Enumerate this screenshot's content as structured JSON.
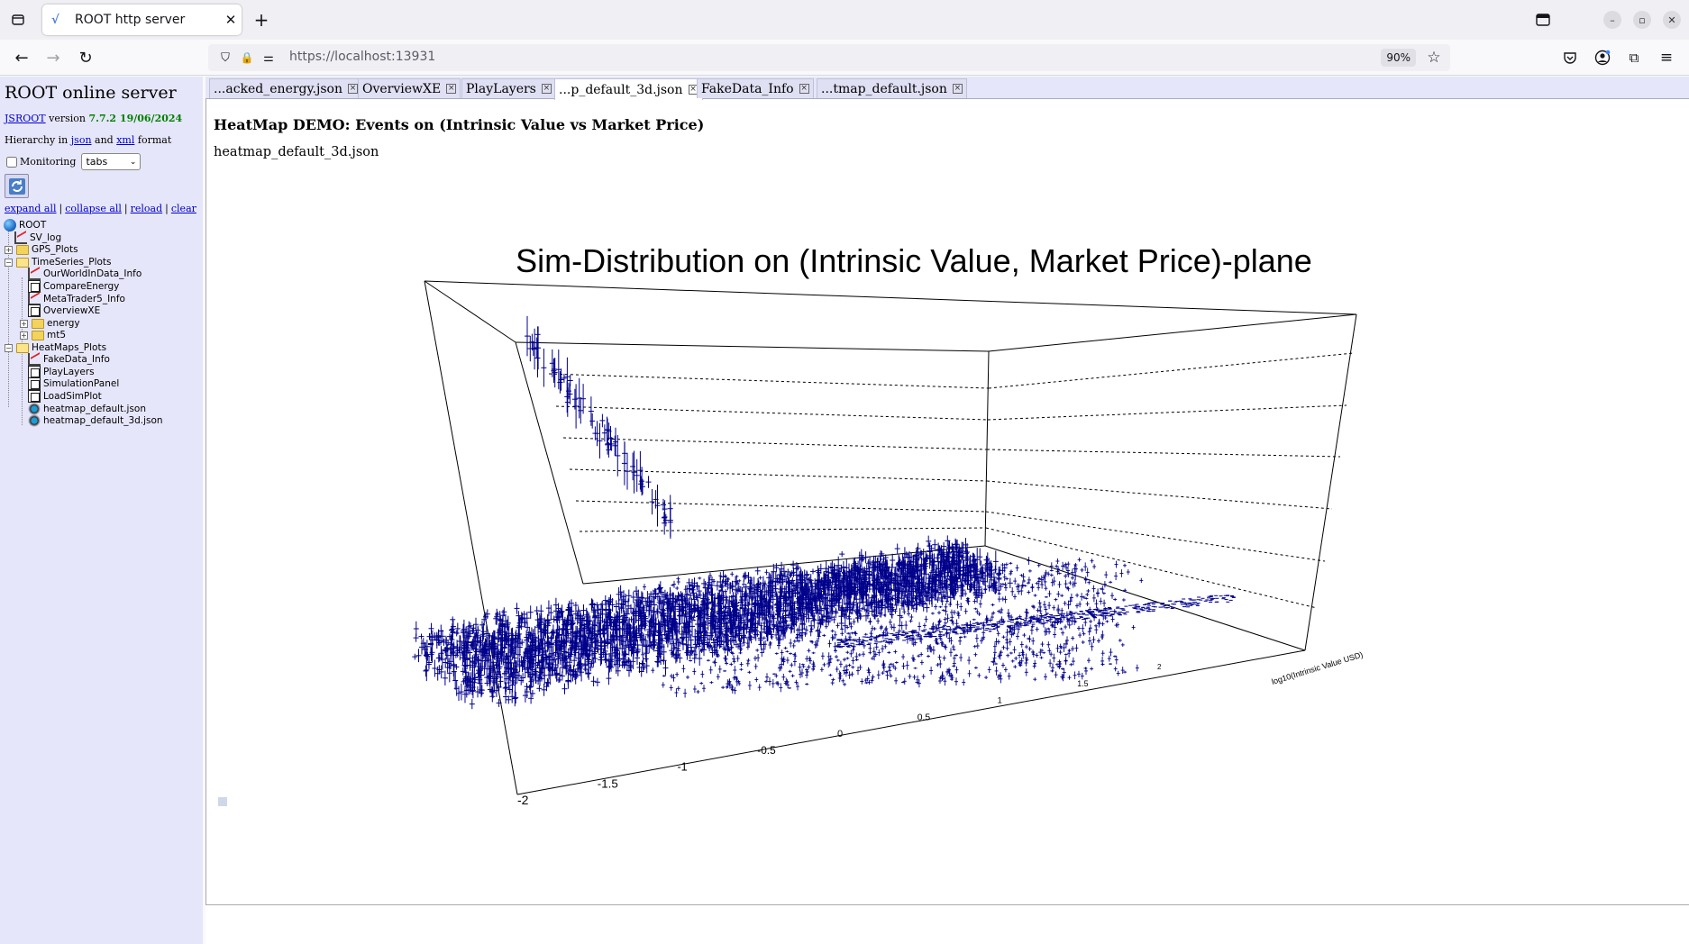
{
  "browser": {
    "tab_title": "ROOT http server",
    "tab_favicon": "√",
    "url": "https://localhost:13931",
    "zoom": "90%"
  },
  "left_panel": {
    "title": "ROOT online server",
    "jsroot_link": "JSROOT",
    "version_word": "version",
    "version_value": "7.7.2 19/06/2024",
    "hierarchy_prefix": "Hierarchy in",
    "json_link": "json",
    "and_word": "and",
    "xml_link": "xml",
    "format_word": "format",
    "monitoring_label": "Monitoring",
    "layout_value": "tabs",
    "links": {
      "expand_all": "expand all",
      "collapse_all": "collapse all",
      "reload": "reload",
      "clear": "clear"
    },
    "tree": [
      {
        "label": "ROOT",
        "icon": "globe-icon"
      },
      {
        "label": "SV_log",
        "icon": "graph-icon"
      },
      {
        "label": "GPS_Plots",
        "icon": "folder-icon"
      },
      {
        "label": "TimeSeries_Plots",
        "icon": "folder-open-icon"
      },
      {
        "label": "OurWorldInData_Info",
        "icon": "graph-icon"
      },
      {
        "label": "CompareEnergy",
        "icon": "canvas-icon"
      },
      {
        "label": "MetaTrader5_Info",
        "icon": "graph-icon"
      },
      {
        "label": "OverviewXE",
        "icon": "canvas-icon"
      },
      {
        "label": "energy",
        "icon": "folder-icon"
      },
      {
        "label": "mt5",
        "icon": "folder-icon"
      },
      {
        "label": "HeatMaps_Plots",
        "icon": "folder-open-icon"
      },
      {
        "label": "FakeData_Info",
        "icon": "graph-icon"
      },
      {
        "label": "PlayLayers",
        "icon": "canvas-icon"
      },
      {
        "label": "SimulationPanel",
        "icon": "canvas-icon"
      },
      {
        "label": "LoadSimPlot",
        "icon": "canvas-icon"
      },
      {
        "label": "heatmap_default.json",
        "icon": "histogram-icon"
      },
      {
        "label": "heatmap_default_3d.json",
        "icon": "histogram-icon"
      }
    ]
  },
  "doc_tabs": [
    {
      "label": "...acked_energy.json"
    },
    {
      "label": "OverviewXE"
    },
    {
      "label": "PlayLayers"
    },
    {
      "label": "...p_default_3d.json"
    },
    {
      "label": "FakeData_Info"
    },
    {
      "label": "...tmap_default.json"
    }
  ],
  "main": {
    "demo_title": "HeatMap DEMO: Events on (Intrinsic Value vs Market Price)",
    "file_label": "heatmap_default_3d.json"
  },
  "chart_data": {
    "type": "scatter",
    "title": "Sim-Distribution on (Intrinsic Value, Market Price)-plane",
    "xlabel": "log10(Intrinsic Value USD)",
    "ylabel": "",
    "x_axis_ticks": [
      "-2",
      "-1.5",
      "-1",
      "-0.5",
      "0",
      "0.5",
      "1",
      "1.5",
      "2"
    ],
    "xlim": [
      -2,
      2
    ],
    "grid": true,
    "color": "#00008b"
  }
}
